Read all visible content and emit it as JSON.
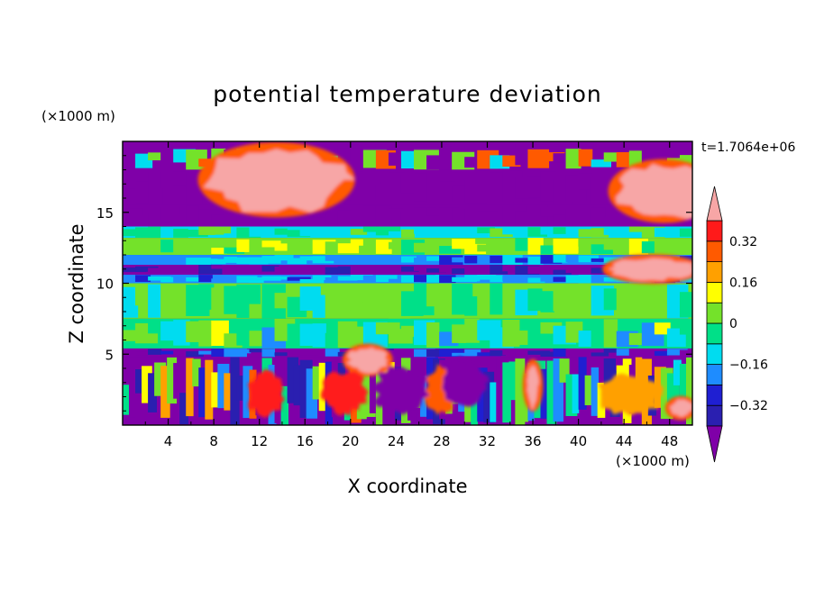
{
  "chart_data": {
    "type": "heatmap",
    "title": "potential temperature deviation",
    "time_label": "t=1.7064e+06",
    "xlabel": "X coordinate",
    "ylabel": "Z coordinate",
    "x_unit": "(×1000 m)",
    "y_unit": "(×1000 m)",
    "xlim": [
      0,
      50
    ],
    "ylim": [
      0,
      20
    ],
    "x_ticks": [
      4,
      8,
      12,
      16,
      20,
      24,
      28,
      32,
      36,
      40,
      44,
      48
    ],
    "y_ticks": [
      5,
      10,
      15
    ],
    "colorbar": {
      "levels": [
        -0.4,
        -0.32,
        -0.24,
        -0.16,
        -0.08,
        0,
        0.08,
        0.16,
        0.24,
        0.32,
        0.4
      ],
      "labels": [
        "0.32",
        "0.16",
        "0",
        "-0.16",
        "-0.32"
      ],
      "label_values": [
        0.32,
        0.16,
        0,
        -0.16,
        -0.32
      ],
      "colors_low_to_high": [
        "#7f00a8",
        "#2a1fb0",
        "#1f1fd2",
        "#1e8cff",
        "#00dcf0",
        "#00e088",
        "#74e22a",
        "#ffff00",
        "#ffa000",
        "#ff5a00",
        "#ff1a1a",
        "#f7a6a6"
      ],
      "extend": "both"
    },
    "rows_top_to_bottom": [
      {
        "z": [
          19.5,
          19.8
        ],
        "pattern": "violet-pink"
      },
      {
        "z": [
          18.0,
          19.5
        ],
        "pattern": "violet-pink-edges"
      },
      {
        "z": [
          15.5,
          18.0
        ],
        "pattern": "violet-pink"
      },
      {
        "z": [
          14.0,
          15.5
        ],
        "pattern": "violet-pink"
      },
      {
        "z": [
          13.2,
          14.0
        ],
        "pattern": "cyan-green"
      },
      {
        "z": [
          12.0,
          13.2
        ],
        "pattern": "yellow-green"
      },
      {
        "z": [
          11.3,
          12.0
        ],
        "pattern": "blue-cyan"
      },
      {
        "z": [
          10.6,
          11.3
        ],
        "pattern": "violet"
      },
      {
        "z": [
          10.0,
          10.6
        ],
        "pattern": "blue-cyan"
      },
      {
        "z": [
          7.5,
          10.0
        ],
        "pattern": "green-light"
      },
      {
        "z": [
          5.4,
          7.5
        ],
        "pattern": "green-mixed"
      },
      {
        "z": [
          4.8,
          5.4
        ],
        "pattern": "violet-blue"
      },
      {
        "z": [
          0.0,
          4.8
        ],
        "pattern": "turbulent"
      }
    ],
    "blobs": [
      {
        "x": 13.5,
        "z": 17.3,
        "rx": 6.5,
        "rz": 2.4,
        "level": "max"
      },
      {
        "x": 47.5,
        "z": 16.5,
        "rx": 4.5,
        "rz": 2.0,
        "level": "max"
      },
      {
        "x": 46.5,
        "z": 11.0,
        "rx": 4.0,
        "rz": 0.8,
        "level": "max"
      },
      {
        "x": 21.5,
        "z": 4.6,
        "rx": 1.8,
        "rz": 0.9,
        "level": "max"
      },
      {
        "x": 19.5,
        "z": 2.3,
        "rx": 2.0,
        "rz": 1.6,
        "level": "0.32"
      },
      {
        "x": 12.5,
        "z": 2.2,
        "rx": 1.7,
        "rz": 1.7,
        "level": "0.32"
      },
      {
        "x": 28.0,
        "z": 2.5,
        "rx": 1.5,
        "rz": 1.8,
        "level": "0.24"
      },
      {
        "x": 36.0,
        "z": 2.8,
        "rx": 0.5,
        "rz": 1.6,
        "level": "max"
      },
      {
        "x": 30.0,
        "z": 3.0,
        "rx": 2.0,
        "rz": 1.8,
        "level": "-0.4"
      },
      {
        "x": 24.5,
        "z": 2.5,
        "rx": 2.5,
        "rz": 1.8,
        "level": "-0.4"
      },
      {
        "x": 44.5,
        "z": 2.2,
        "rx": 3.0,
        "rz": 1.5,
        "level": "0.16"
      },
      {
        "x": 49.0,
        "z": 1.2,
        "rx": 1.0,
        "rz": 0.6,
        "level": "max"
      }
    ]
  }
}
